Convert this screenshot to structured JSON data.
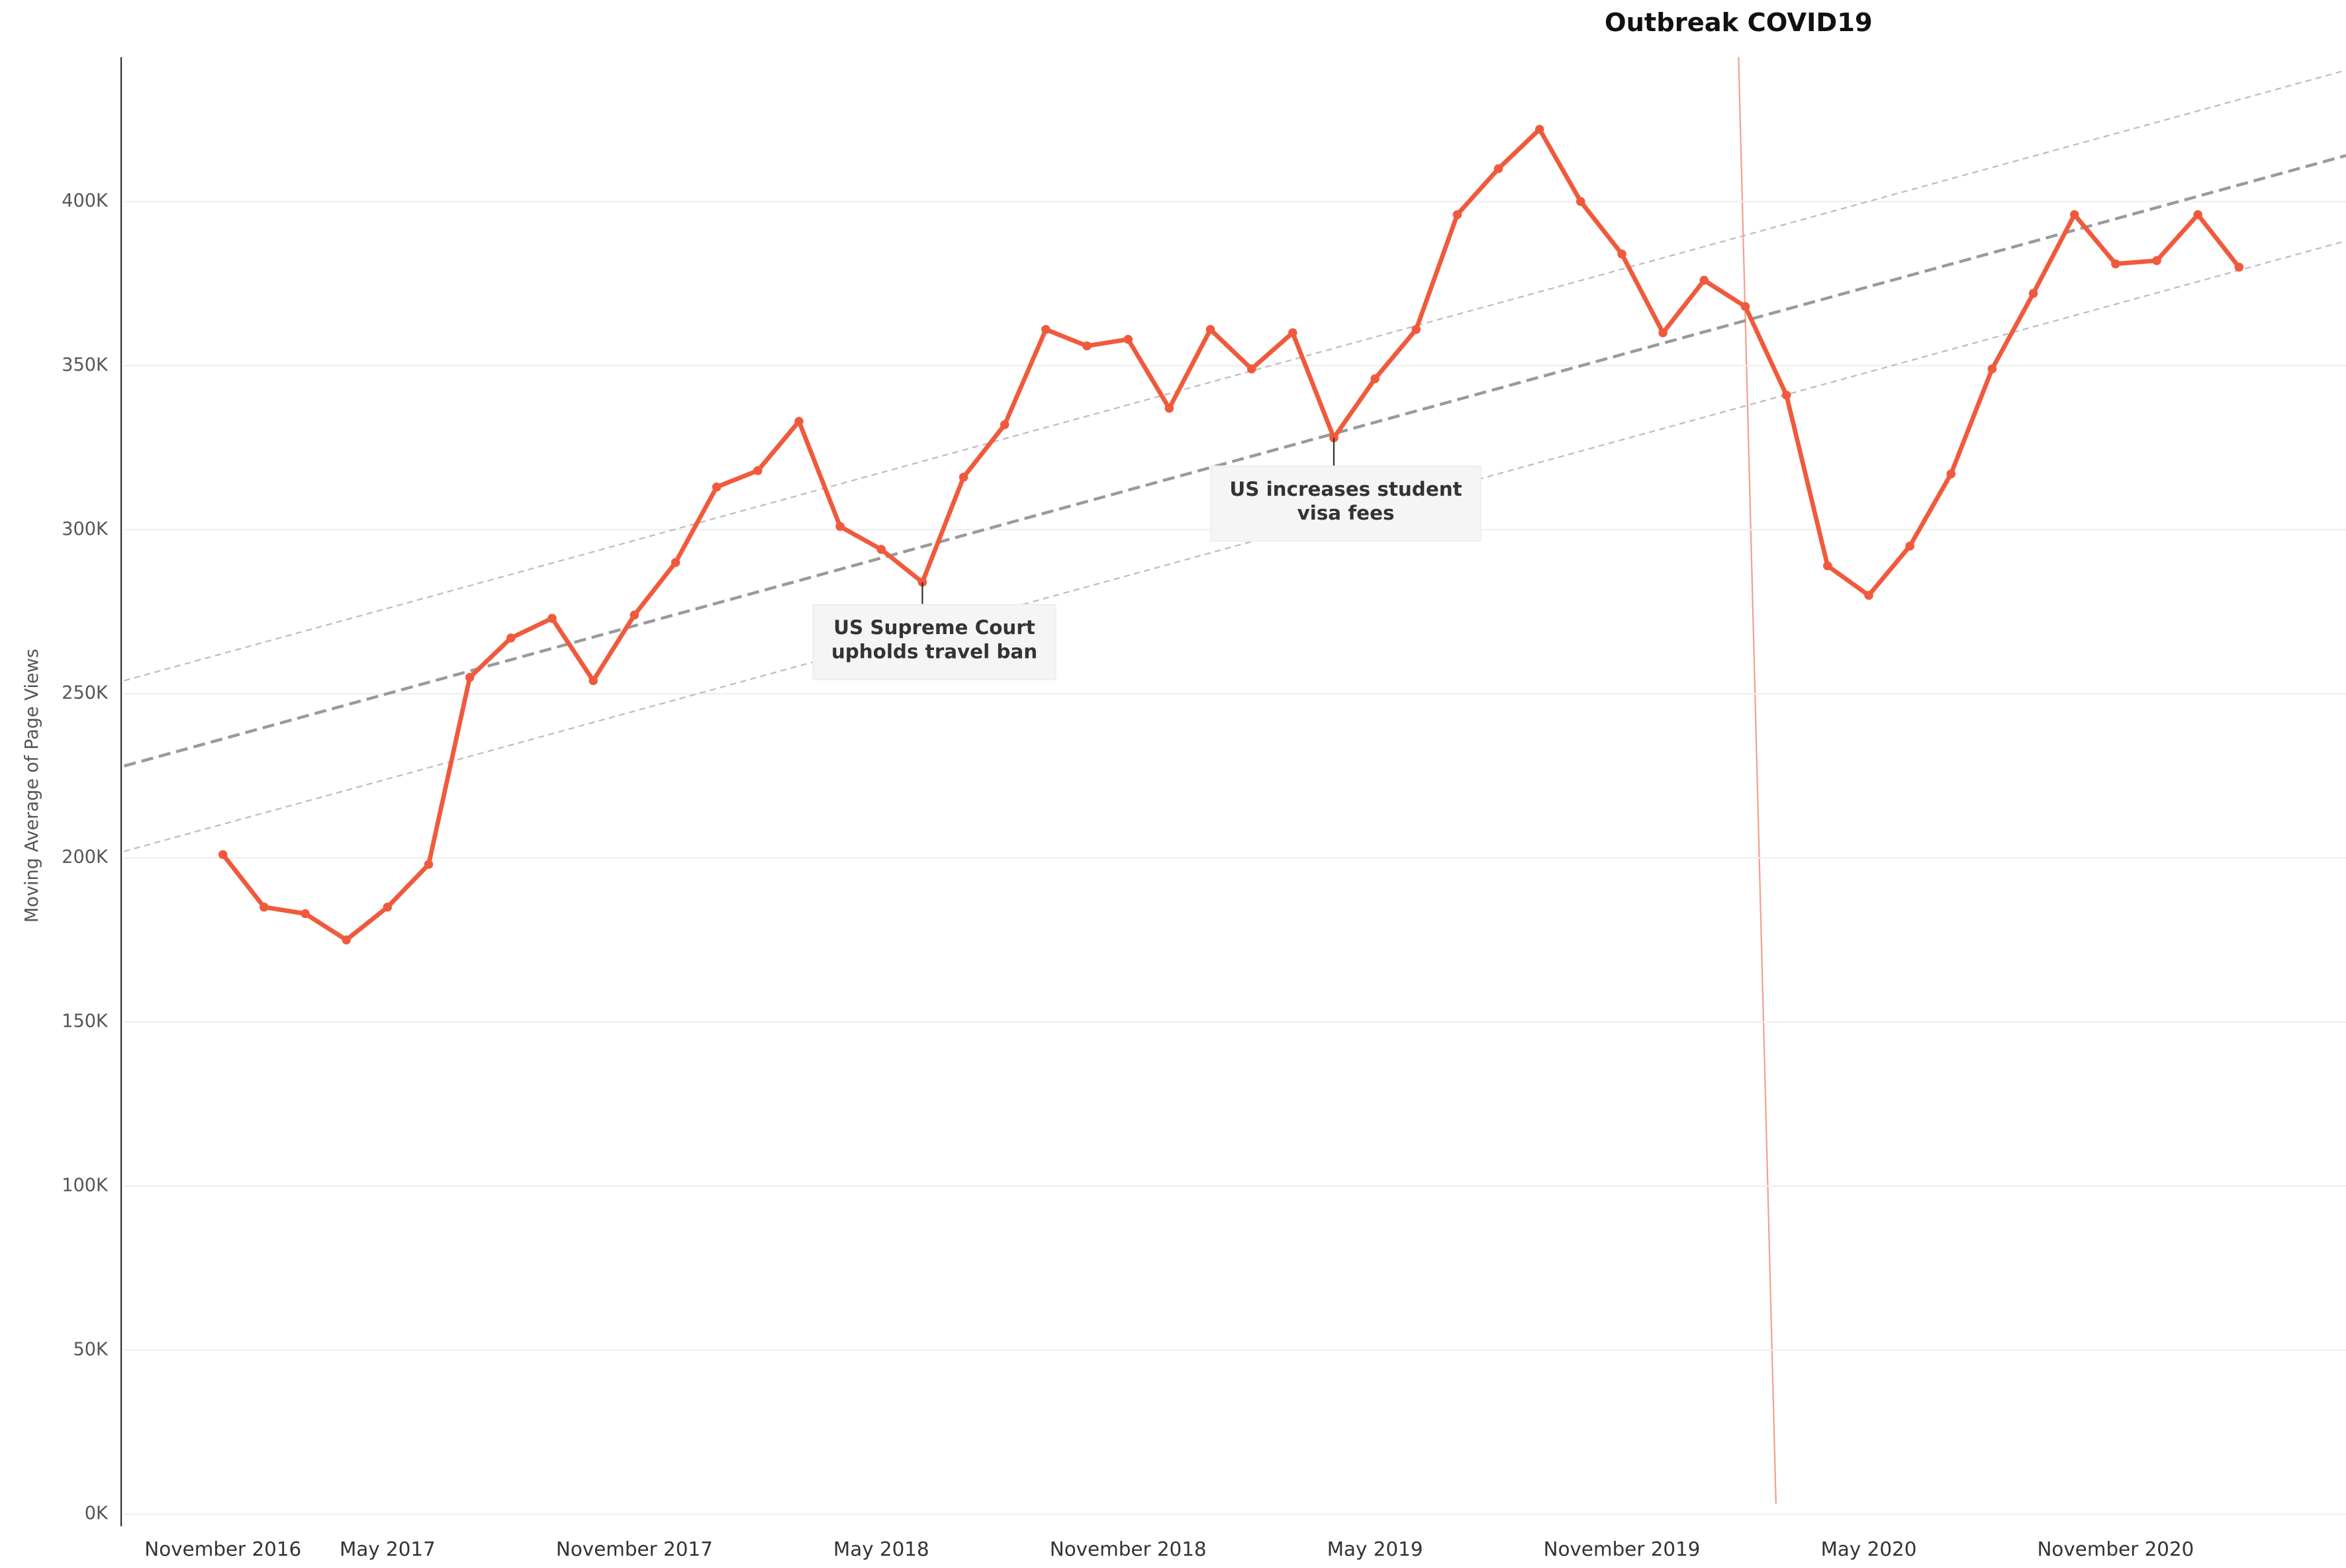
{
  "chart_data": {
    "type": "line",
    "y_label": "Moving Average of Page Views",
    "color": "#f05a3c",
    "categories": [
      "November 2016",
      null,
      null,
      null,
      "May 2017",
      null,
      null,
      null,
      null,
      null,
      "November 2017",
      null,
      null,
      null,
      null,
      null,
      "May 2018",
      null,
      null,
      null,
      null,
      null,
      "November 2018",
      null,
      null,
      null,
      null,
      null,
      "May 2019",
      null,
      null,
      null,
      null,
      null,
      "November 2019",
      null,
      null,
      null,
      null,
      null,
      "May 2020",
      null,
      null,
      null,
      null,
      null,
      "November 2020",
      null,
      null,
      null
    ],
    "values": [
      201000,
      185000,
      183000,
      175000,
      185000,
      198000,
      255000,
      267000,
      273000,
      254000,
      274000,
      290000,
      313000,
      318000,
      333000,
      301000,
      294000,
      284000,
      316000,
      332000,
      361000,
      356000,
      358000,
      337000,
      361000,
      349000,
      360000,
      328000,
      346000,
      361000,
      396000,
      410000,
      422000,
      400000,
      384000,
      360000,
      376000,
      368000,
      341000,
      289000,
      280000,
      295000,
      317000,
      349000,
      372000,
      396000,
      381000,
      382000,
      396000,
      380000
    ],
    "xlim": [
      -2.4,
      51.6
    ],
    "ylim": [
      0,
      444000
    ],
    "yticks": [
      {
        "value": 0,
        "label": "0K"
      },
      {
        "value": 50000,
        "label": "50K"
      },
      {
        "value": 100000,
        "label": "100K"
      },
      {
        "value": 150000,
        "label": "150K"
      },
      {
        "value": 200000,
        "label": "200K"
      },
      {
        "value": 250000,
        "label": "250K"
      },
      {
        "value": 300000,
        "label": "300K"
      },
      {
        "value": 350000,
        "label": "350K"
      },
      {
        "value": 400000,
        "label": "400K"
      }
    ],
    "grid": true,
    "trend_lines": [
      {
        "style": "bold",
        "values": [
          228000,
          414000
        ]
      },
      {
        "style": "thin",
        "values": [
          254000,
          440000
        ]
      },
      {
        "style": "thin",
        "values": [
          202000,
          388000
        ]
      }
    ],
    "annotations": [
      {
        "lines": [
          "US Supreme Court",
          "upholds travel ban"
        ],
        "index": 17
      },
      {
        "lines": [
          "US increases student",
          "visa fees"
        ],
        "index": 27
      }
    ],
    "event_label": "Outbreak COVID19"
  }
}
